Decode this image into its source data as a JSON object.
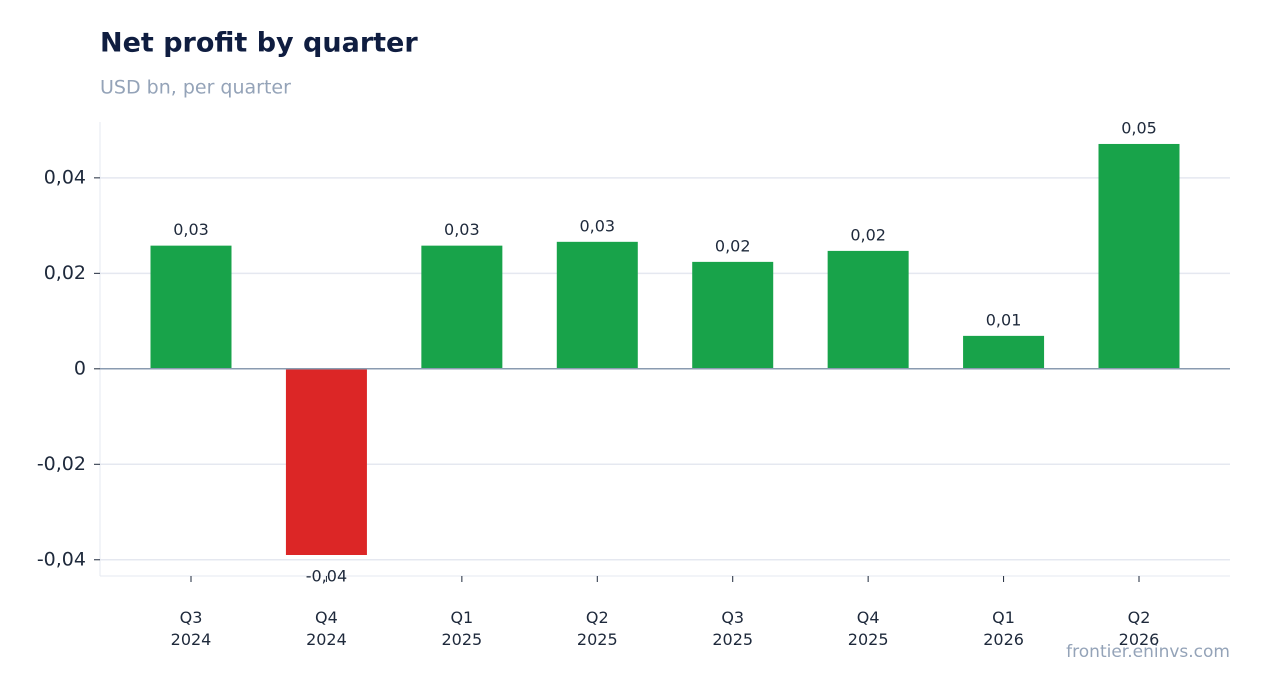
{
  "chart_data": {
    "type": "bar",
    "title": "Net profit by quarter",
    "subtitle": "USD bn, per quarter",
    "source": "frontier.eninvs.com",
    "categories": [
      "Q3 2024",
      "Q4 2024",
      "Q1 2025",
      "Q2 2025",
      "Q3 2025",
      "Q4 2025",
      "Q1 2026",
      "Q2 2026"
    ],
    "values": [
      0.0258,
      -0.039,
      0.0258,
      0.0266,
      0.0224,
      0.0247,
      0.0069,
      0.0471
    ],
    "value_labels": [
      "0,03",
      "-0,04",
      "0,03",
      "0,03",
      "0,02",
      "0,02",
      "0,01",
      "0,05"
    ],
    "positive_color": "#18a34a",
    "negative_color": "#dc2626",
    "ylim": [
      -0.0434,
      0.0517
    ],
    "yticks": [
      {
        "value": -0.04,
        "label": "-0,04"
      },
      {
        "value": -0.02,
        "label": "-0,02"
      },
      0,
      {
        "value": 0.02,
        "label": "0,02"
      },
      {
        "value": 0.04,
        "label": "0,04"
      }
    ],
    "grid": true
  }
}
